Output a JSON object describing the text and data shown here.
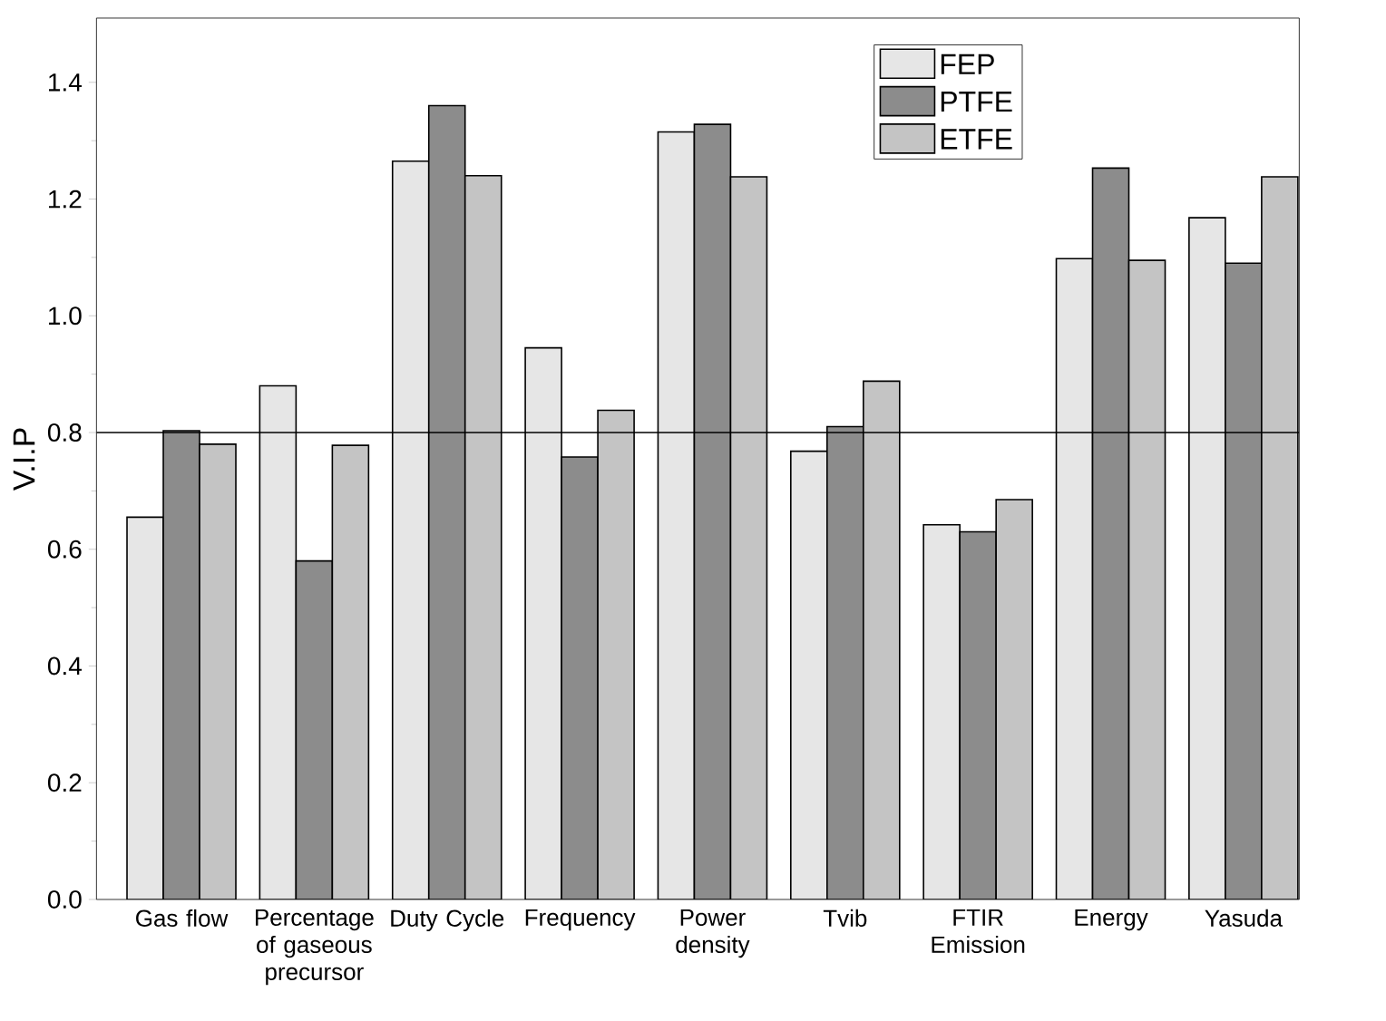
{
  "chart_data": {
    "type": "bar",
    "ylabel": "V.I.P",
    "categories": [
      "Gas flow",
      "Percentage of gaseous precursor",
      "Duty Cycle",
      "Frequency",
      "Power density",
      "Tvib",
      "FTIR Emission",
      "Energy",
      "Yasuda"
    ],
    "series": [
      {
        "name": "FEP",
        "color": "#e6e6e6",
        "values": [
          0.655,
          0.88,
          1.265,
          0.945,
          1.315,
          0.768,
          0.642,
          1.098,
          1.168
        ]
      },
      {
        "name": "PTFE",
        "color": "#8c8c8c",
        "values": [
          0.803,
          0.58,
          1.36,
          0.758,
          1.328,
          0.81,
          0.63,
          1.253,
          1.09
        ]
      },
      {
        "name": "ETFE",
        "color": "#c4c4c4",
        "values": [
          0.78,
          0.778,
          1.24,
          0.838,
          1.238,
          0.888,
          0.685,
          1.095,
          1.238
        ]
      }
    ],
    "ylim": [
      0,
      1.51
    ],
    "yticks": [
      {
        "value": 0,
        "label": "0.0"
      },
      {
        "value": 0.2,
        "label": "0.2"
      },
      {
        "value": 0.4,
        "label": "0.4"
      },
      {
        "value": 0.6,
        "label": "0.6"
      },
      {
        "value": 0.8,
        "label": "0.8"
      },
      {
        "value": 1.0,
        "label": "1.0"
      },
      {
        "value": 1.2,
        "label": "1.2"
      },
      {
        "value": 1.4,
        "label": "1.4"
      }
    ],
    "ref_lines": [
      {
        "axis": "y",
        "value": 0.8,
        "color": "#000000"
      }
    ],
    "legend": "top right",
    "grid": false
  }
}
